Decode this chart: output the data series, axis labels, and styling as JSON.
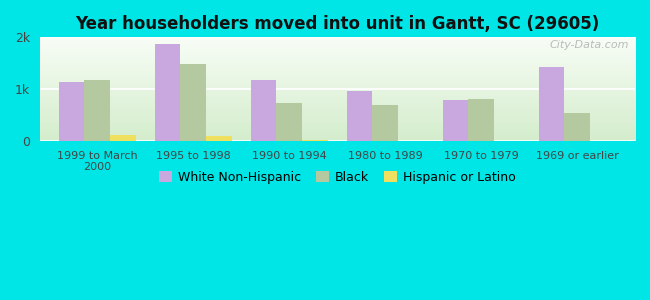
{
  "title": "Year householders moved into unit in Gantt, SC (29605)",
  "categories": [
    "1999 to March\n2000",
    "1995 to 1998",
    "1990 to 1994",
    "1980 to 1989",
    "1970 to 1979",
    "1969 or earlier"
  ],
  "white_non_hispanic": [
    1130,
    1880,
    1170,
    960,
    800,
    1430
  ],
  "black": [
    1170,
    1480,
    730,
    700,
    820,
    550
  ],
  "hispanic_or_latino": [
    120,
    100,
    20,
    0,
    0,
    0
  ],
  "bar_colors": {
    "white": "#c9a8e0",
    "black": "#b5c9a0",
    "hispanic": "#f0e060"
  },
  "ylim": [
    0,
    2000
  ],
  "ytick_labels": [
    "0",
    "1k",
    "2k"
  ],
  "fig_bg_color": "#00e5e5",
  "plot_bg_top": "#d4edcc",
  "plot_bg_bottom": "#f8fdf6",
  "watermark": "City-Data.com",
  "legend_labels": [
    "White Non-Hispanic",
    "Black",
    "Hispanic or Latino"
  ],
  "bar_width": 0.27
}
